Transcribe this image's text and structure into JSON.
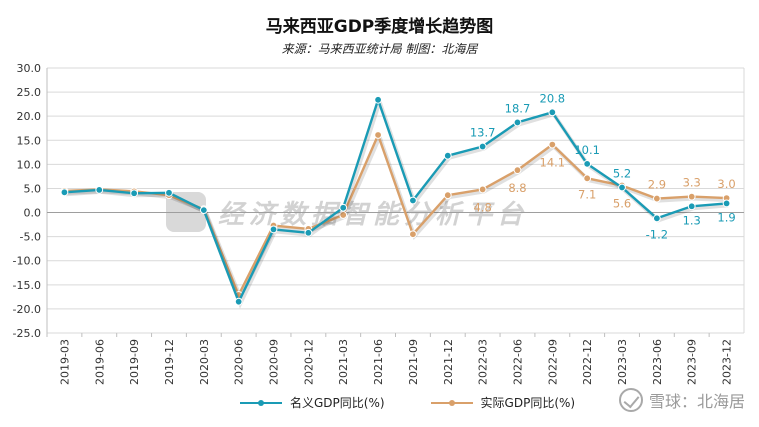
{
  "title": "马来西亚GDP季度增长趋势图",
  "subtitle": "来源：马来西亚统计局 制图：北海居",
  "watermark_text": "经济数据智能分析平台",
  "credit_text": "雪球：北海居",
  "chart_data": {
    "type": "line",
    "title": "马来西亚GDP季度增长趋势图",
    "subtitle": "来源：马来西亚统计局 制图：北海居",
    "xlabel": "",
    "ylabel": "",
    "ylim": [
      -25,
      30
    ],
    "yticks": [
      "30.0",
      "25.0",
      "20.0",
      "15.0",
      "10.0",
      "5.0",
      "0.0",
      "-5.0",
      "-10.0",
      "-15.0",
      "-20.0",
      "-25.0"
    ],
    "grid": true,
    "legend": "bottom",
    "categories": [
      "2019-03",
      "2019-06",
      "2019-09",
      "2019-12",
      "2020-03",
      "2020-06",
      "2020-09",
      "2020-12",
      "2021-03",
      "2021-06",
      "2021-09",
      "2021-12",
      "2022-03",
      "2022-06",
      "2022-09",
      "2022-12",
      "2023-03",
      "2023-06",
      "2023-09",
      "2023-12"
    ],
    "series": [
      {
        "name": "名义GDP同比(%)",
        "color": "#1a9bb5",
        "values": [
          4.2,
          4.7,
          4.0,
          4.1,
          0.5,
          -18.5,
          -3.5,
          -4.2,
          1.0,
          23.4,
          2.5,
          11.8,
          13.7,
          18.7,
          20.8,
          10.1,
          5.2,
          -1.2,
          1.3,
          1.9
        ],
        "labels": [
          null,
          null,
          null,
          null,
          null,
          null,
          null,
          null,
          null,
          null,
          null,
          null,
          "13.7",
          "18.7",
          "20.8",
          "10.1",
          "5.2",
          "-1.2",
          "1.3",
          "1.9"
        ]
      },
      {
        "name": "实际GDP同比(%)",
        "color": "#d9a06a",
        "values": [
          4.5,
          4.8,
          4.4,
          3.6,
          0.7,
          -17.1,
          -2.7,
          -3.4,
          -0.5,
          16.1,
          -4.5,
          3.6,
          4.8,
          8.8,
          14.1,
          7.1,
          5.6,
          2.9,
          3.3,
          3.0
        ],
        "labels": [
          null,
          null,
          null,
          null,
          null,
          null,
          null,
          null,
          null,
          null,
          null,
          null,
          "4.8",
          "8.8",
          "14.1",
          "7.1",
          "5.6",
          "2.9",
          "3.3",
          "3.0"
        ]
      }
    ]
  }
}
